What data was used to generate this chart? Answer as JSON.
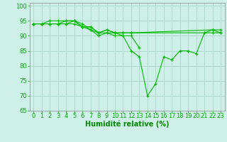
{
  "background_color": "#cff0e8",
  "grid_color": "#b0d8cc",
  "line_color": "#00bb00",
  "marker": "+",
  "xlabel": "Humidité relative (%)",
  "xlabel_color": "#008800",
  "xlabel_fontsize": 7,
  "tick_fontsize": 6,
  "tick_color": "#00aa00",
  "xlim": [
    -0.5,
    23.5
  ],
  "ylim": [
    65,
    101
  ],
  "yticks": [
    65,
    70,
    75,
    80,
    85,
    90,
    95,
    100
  ],
  "xticks": [
    0,
    1,
    2,
    3,
    4,
    5,
    6,
    7,
    8,
    9,
    10,
    11,
    12,
    13,
    14,
    15,
    16,
    17,
    18,
    19,
    20,
    21,
    22,
    23
  ],
  "series": [
    [
      94,
      94,
      95,
      95,
      95,
      95,
      94,
      92,
      91,
      91,
      91,
      90,
      85,
      83,
      70,
      74,
      83,
      82,
      85,
      85,
      84,
      91,
      92,
      91
    ],
    [
      94,
      94,
      94,
      94,
      95,
      95,
      93,
      92,
      90,
      91,
      90,
      90,
      90,
      86,
      null,
      null,
      null,
      null,
      null,
      null,
      null,
      null,
      null,
      null
    ],
    [
      94,
      94,
      94,
      94,
      94,
      95,
      93,
      93,
      91,
      92,
      91,
      91,
      91,
      null,
      null,
      null,
      null,
      null,
      null,
      null,
      null,
      91,
      91,
      91
    ],
    [
      94,
      94,
      94,
      94,
      94,
      94,
      93,
      93,
      91,
      92,
      91,
      91,
      91,
      null,
      null,
      null,
      null,
      null,
      null,
      null,
      null,
      null,
      92,
      92
    ]
  ]
}
